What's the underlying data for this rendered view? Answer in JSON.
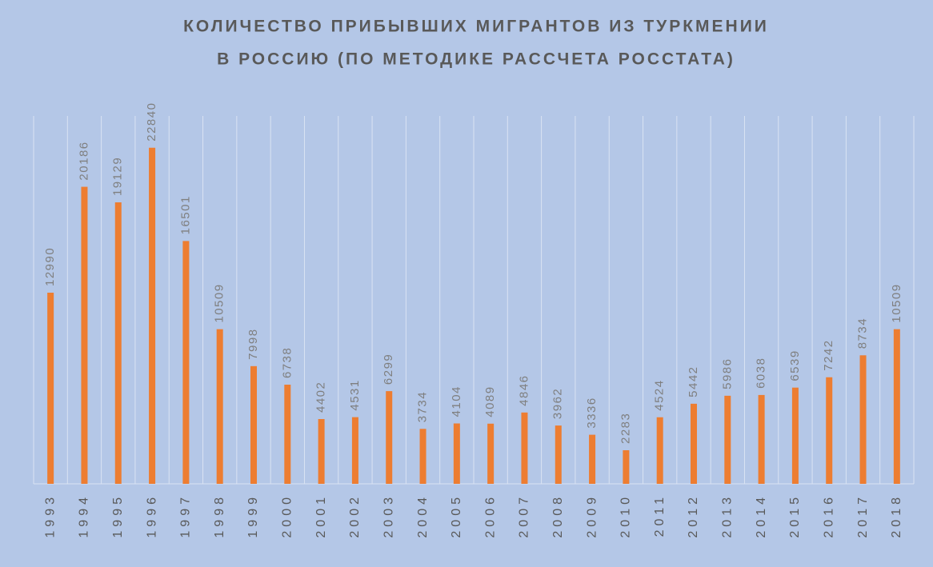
{
  "chart_data": {
    "type": "bar",
    "title": [
      "КОЛИЧЕСТВО ПРИБЫВШИХ МИГРАНТОВ ИЗ ТУРКМЕНИИ",
      "В РОССИЮ (ПО МЕТОДИКЕ РАССЧЕТА РОССТАТА)"
    ],
    "categories": [
      "1993",
      "1994",
      "1995",
      "1996",
      "1997",
      "1998",
      "1999",
      "2000",
      "2001",
      "2002",
      "2003",
      "2004",
      "2005",
      "2006",
      "2007",
      "2008",
      "2009",
      "2010",
      "2011",
      "2012",
      "2013",
      "2014",
      "2015",
      "2016",
      "2017",
      "2018"
    ],
    "values": [
      12990,
      20186,
      19129,
      22840,
      16501,
      10509,
      7998,
      6738,
      4402,
      4531,
      6299,
      3734,
      4104,
      4089,
      4846,
      3962,
      3336,
      2283,
      4524,
      5442,
      5986,
      6038,
      6539,
      7242,
      8734,
      10509
    ],
    "color": "#ed7d31",
    "ylim": [
      0,
      25000
    ],
    "grid": true
  }
}
